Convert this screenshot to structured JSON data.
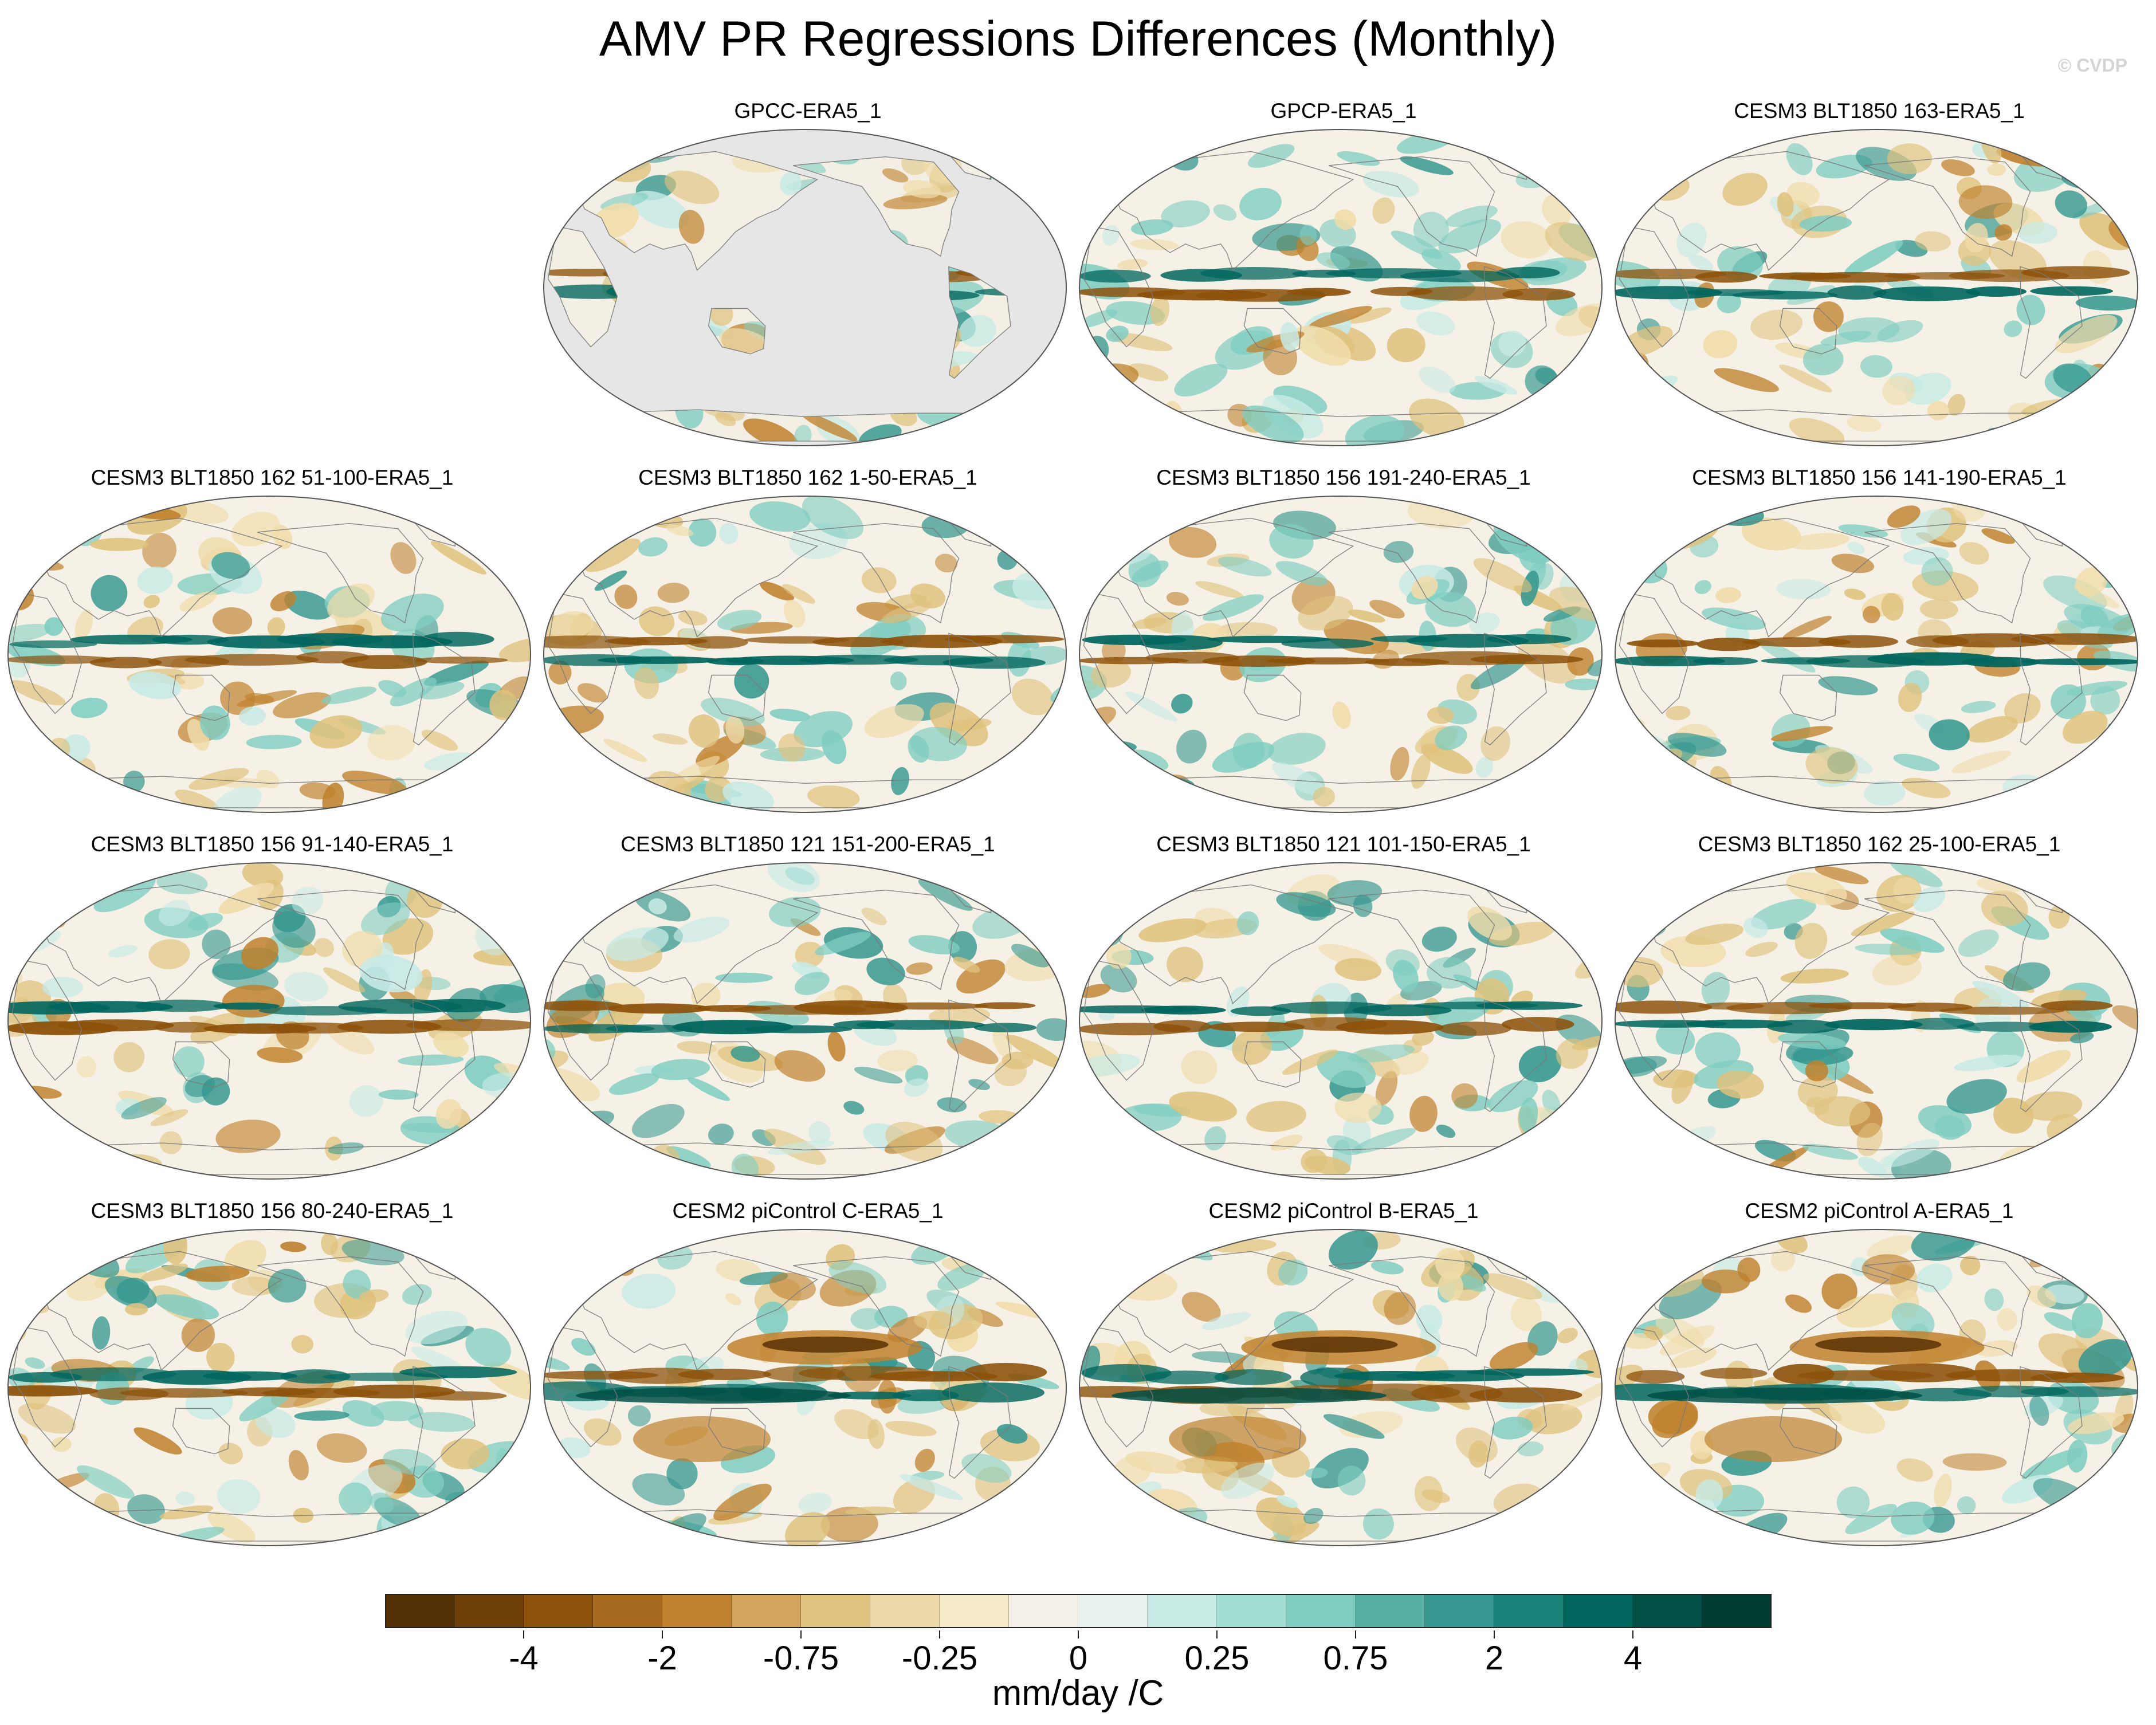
{
  "title": "AMV PR Regressions Differences (Monthly)",
  "credit": "© CVDP",
  "colorbar": {
    "units": "mm/day /C",
    "colors": [
      "#543005",
      "#6f3f0a",
      "#8c510a",
      "#a86a1e",
      "#bf812d",
      "#d2a45e",
      "#dfc27d",
      "#edd9a8",
      "#f6ebc8",
      "#f5f1e8",
      "#e8f3ef",
      "#c7eae5",
      "#a2ded3",
      "#80cdc1",
      "#58b0a5",
      "#35978f",
      "#1a8278",
      "#01665e",
      "#024f45",
      "#003c30"
    ],
    "tick_labels": [
      {
        "boundary": 2,
        "label": "-4"
      },
      {
        "boundary": 4,
        "label": "-2"
      },
      {
        "boundary": 6,
        "label": "-0.75"
      },
      {
        "boundary": 8,
        "label": "-0.25"
      },
      {
        "boundary": 10,
        "label": "0"
      },
      {
        "boundary": 12,
        "label": "0.25"
      },
      {
        "boundary": 14,
        "label": "0.75"
      },
      {
        "boundary": 16,
        "label": "2"
      },
      {
        "boundary": 18,
        "label": "4"
      }
    ]
  },
  "panels": [
    {
      "title": "GPCC-ERA5_1",
      "land_only": true
    },
    {
      "title": "GPCP-ERA5_1"
    },
    {
      "title": "CESM3 BLT1850 163-ERA5_1"
    },
    {
      "title": "CESM3 BLT1850 162 51-100-ERA5_1"
    },
    {
      "title": "CESM3 BLT1850 162 1-50-ERA5_1"
    },
    {
      "title": "CESM3 BLT1850 156 191-240-ERA5_1"
    },
    {
      "title": "CESM3 BLT1850 156 141-190-ERA5_1"
    },
    {
      "title": "CESM3 BLT1850 156 91-140-ERA5_1"
    },
    {
      "title": "CESM3 BLT1850 121 151-200-ERA5_1"
    },
    {
      "title": "CESM3 BLT1850 121 101-150-ERA5_1"
    },
    {
      "title": "CESM3 BLT1850 162 25-100-ERA5_1"
    },
    {
      "title": "CESM3 BLT1850 156 80-240-ERA5_1"
    },
    {
      "title": "CESM2 piControl C-ERA5_1"
    },
    {
      "title": "CESM2 piControl B-ERA5_1"
    },
    {
      "title": "CESM2 piControl A-ERA5_1"
    }
  ]
}
